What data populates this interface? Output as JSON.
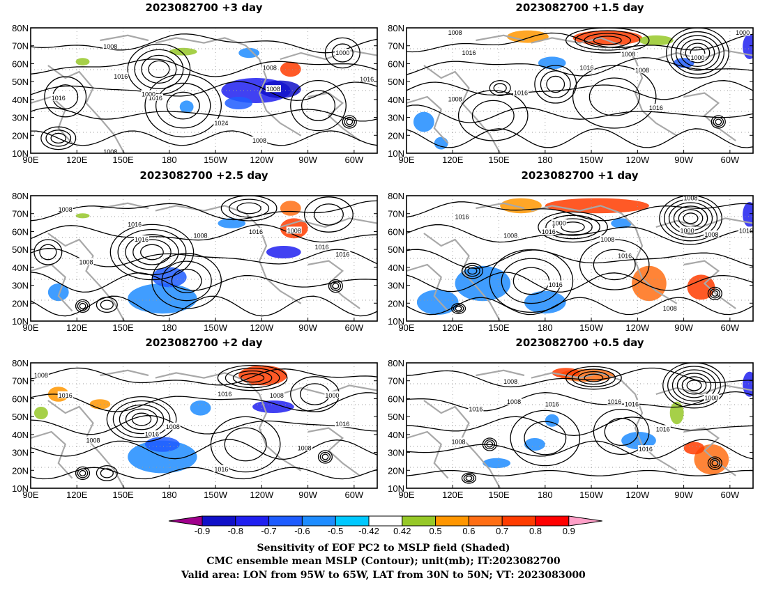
{
  "panels": [
    {
      "title": "2023082700  +3 day",
      "contour_labels": [
        "1008",
        "1016",
        "1016",
        "1000",
        "1008",
        "1000",
        "1008",
        "1016",
        "1016",
        "1024",
        "1008",
        "1008"
      ]
    },
    {
      "title": "2023082700  +1.5 day",
      "contour_labels": [
        "1008",
        "1016",
        "1008",
        "1016",
        "1000",
        "1008",
        "1016",
        "1016",
        "1008",
        "1000"
      ]
    },
    {
      "title": "2023082700  +2.5 day",
      "contour_labels": [
        "1008",
        "1016",
        "1008",
        "1016",
        "1016",
        "1008",
        "1016",
        "1016",
        "1008"
      ]
    },
    {
      "title": "2023082700  +1 day",
      "contour_labels": [
        "1008",
        "1016",
        "1000",
        "1008",
        "1008",
        "1016",
        "1008",
        "1016",
        "1016",
        "1008",
        "1000",
        "1016"
      ]
    },
    {
      "title": "2023082700  +2 day",
      "contour_labels": [
        "1008",
        "1016",
        "1008",
        "1016",
        "1016",
        "1008",
        "1000",
        "1016",
        "1008",
        "1016",
        "1008"
      ]
    },
    {
      "title": "2023082700  +0.5 day",
      "contour_labels": [
        "1008",
        "1008",
        "1016",
        "1016",
        "1008",
        "1016",
        "1000",
        "1016",
        "1016",
        "1016"
      ]
    }
  ],
  "lat_ticks": [
    "10N",
    "20N",
    "30N",
    "40N",
    "50N",
    "60N",
    "70N",
    "80N"
  ],
  "lon_ticks": [
    "90E",
    "120E",
    "150E",
    "180",
    "150W",
    "120W",
    "90W",
    "60W"
  ],
  "colorbar": {
    "tick_labels": [
      "-0.9",
      "-0.8",
      "-0.7",
      "-0.6",
      "-0.5",
      "-0.42",
      "0.42",
      "0.5",
      "0.6",
      "0.7",
      "0.8",
      "0.9"
    ],
    "colors": [
      "#a0008c",
      "#1010c8",
      "#2020f0",
      "#1e5cff",
      "#1e8cff",
      "#00c8ff",
      "#ffffff",
      "#96c828",
      "#ff9600",
      "#ff6e14",
      "#ff3c00",
      "#ff0000",
      "#ffa0c8"
    ]
  },
  "caption": [
    "Sensitivity of EOF PC2 to MSLP field (Shaded)",
    "CMC ensemble mean MSLP (Contour); unit(mb); IT:2023082700",
    "Valid area: LON from 95W to 65W, LAT from 30N to 50N; VT: 2023083000"
  ]
}
